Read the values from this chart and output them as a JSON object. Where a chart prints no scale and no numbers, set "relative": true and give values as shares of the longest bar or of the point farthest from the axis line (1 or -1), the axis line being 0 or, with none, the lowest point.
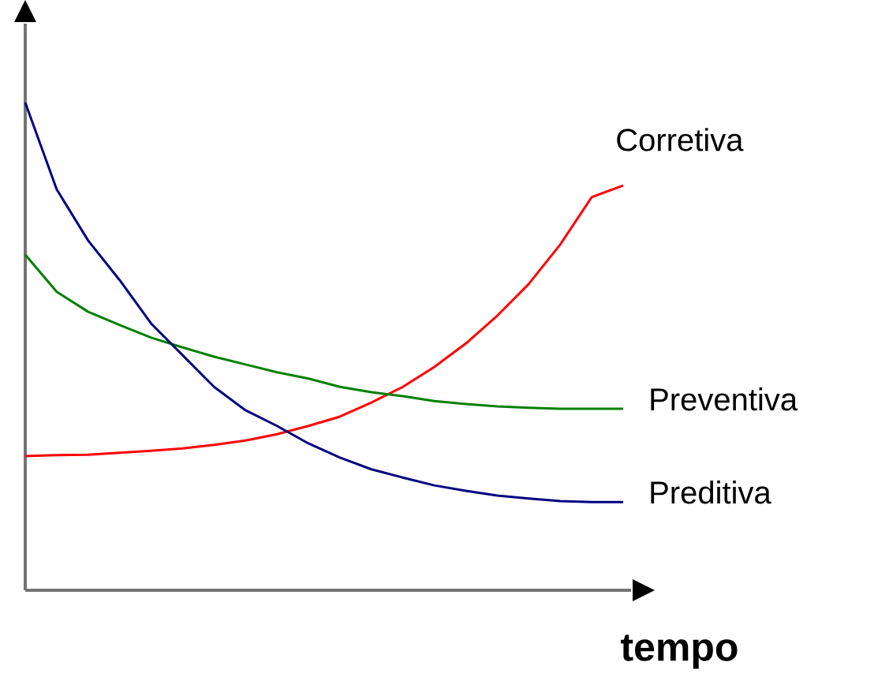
{
  "chart_data": {
    "type": "line",
    "relative": true,
    "xlabel": "tempo",
    "legend": false,
    "marker": "none",
    "line_style": "solid",
    "categories": [
      null,
      null,
      null,
      null,
      null,
      null,
      null,
      null,
      null,
      null,
      null,
      null,
      null,
      null,
      null,
      null,
      null,
      null,
      null,
      null
    ],
    "series": [
      {
        "name": "Corretiva",
        "color": "#ff0000",
        "values": [
          0.275,
          0.277,
          0.278,
          0.282,
          0.286,
          0.291,
          0.298,
          0.307,
          0.32,
          0.337,
          0.356,
          0.385,
          0.417,
          0.458,
          0.506,
          0.563,
          0.628,
          0.709,
          0.806,
          0.83
        ]
      },
      {
        "name": "Preventiva",
        "color": "#008000",
        "values": [
          0.688,
          0.612,
          0.571,
          0.544,
          0.518,
          0.498,
          0.479,
          0.463,
          0.447,
          0.434,
          0.417,
          0.406,
          0.398,
          0.388,
          0.382,
          0.377,
          0.374,
          0.372,
          0.372,
          0.372
        ]
      },
      {
        "name": "Preditiva",
        "color": "#000080",
        "values": [
          1.0,
          0.822,
          0.717,
          0.636,
          0.547,
          0.482,
          0.417,
          0.369,
          0.337,
          0.301,
          0.272,
          0.248,
          0.231,
          0.215,
          0.204,
          0.194,
          0.188,
          0.183,
          0.181,
          0.181
        ]
      }
    ]
  }
}
